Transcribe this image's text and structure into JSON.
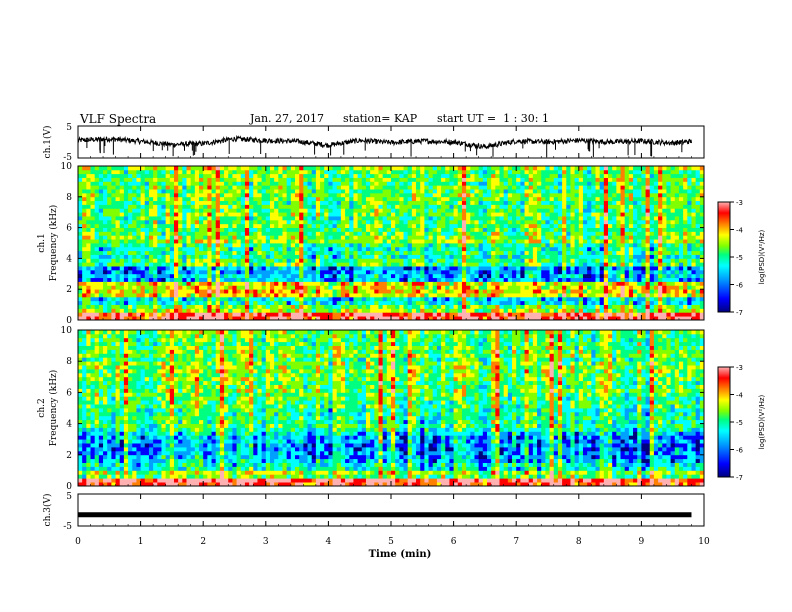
{
  "header": {
    "title": "VLF Spectra",
    "date": "Jan. 27, 2017",
    "station": "station= KAP",
    "start": "start UT =  1 : 30: 1"
  },
  "chart_data": [
    {
      "type": "line",
      "panel": "ch.1 waveform",
      "ylabel": "ch.1(V)",
      "ylim": [
        -5,
        5
      ],
      "yticks": [
        "5",
        "-5"
      ],
      "x": [
        0,
        0.5,
        1.0,
        1.5,
        2.0,
        2.5,
        3.0,
        3.5,
        4.0,
        4.5,
        5.0,
        5.5,
        6.0,
        6.5,
        7.0,
        7.5,
        8.0,
        8.5,
        9.0,
        9.5,
        9.8
      ],
      "values": [
        0.5,
        1.0,
        0.2,
        -0.8,
        -0.5,
        1.0,
        0.5,
        0.2,
        -1.0,
        0.5,
        -0.2,
        0.3,
        0.0,
        -1.5,
        0.3,
        0.0,
        0.5,
        0.0,
        0.3,
        -0.3,
        0.2
      ]
    },
    {
      "type": "heatmap",
      "panel": "ch.1 spectrogram",
      "ylabel": "ch.1\nFrequency (kHz)",
      "ylim": [
        0,
        10
      ],
      "xlim": [
        0,
        10
      ],
      "yticks": [
        "0",
        "2",
        "4",
        "6",
        "8",
        "10"
      ],
      "colorbar": {
        "label": "log(PSD)(V²/Hz)",
        "range": [
          -7,
          -3
        ],
        "ticks": [
          "-3",
          "-4",
          "-5",
          "-6",
          "-7"
        ]
      }
    },
    {
      "type": "heatmap",
      "panel": "ch.2 spectrogram",
      "ylabel": "ch.2\nFrequency (kHz)",
      "ylim": [
        0,
        10
      ],
      "xlim": [
        0,
        10
      ],
      "yticks": [
        "0",
        "2",
        "4",
        "6",
        "8",
        "10"
      ],
      "colorbar": {
        "label": "log(PSD)(V²/Hz)",
        "range": [
          -7,
          -3
        ],
        "ticks": [
          "-3",
          "-4",
          "-5",
          "-6",
          "-7"
        ]
      }
    },
    {
      "type": "line",
      "panel": "ch.3 waveform",
      "ylabel": "ch.3(V)",
      "ylim": [
        -5,
        5
      ],
      "yticks": [
        "5",
        "-5"
      ],
      "x": [
        0,
        9.8
      ],
      "values": [
        -1.5,
        -1.5
      ]
    }
  ],
  "xaxis": {
    "label": "Time (min)",
    "range": [
      0,
      10
    ],
    "ticks": [
      "0",
      "1",
      "2",
      "3",
      "4",
      "5",
      "6",
      "7",
      "8",
      "9",
      "10"
    ]
  },
  "colors": {
    "colormap": [
      "#00007f",
      "#0000ff",
      "#00a0ff",
      "#00ffff",
      "#00ff80",
      "#80ff00",
      "#ffff00",
      "#ff8000",
      "#ff0000",
      "#ffb0b0"
    ],
    "axis": "#000000",
    "waveform": "#000000"
  }
}
